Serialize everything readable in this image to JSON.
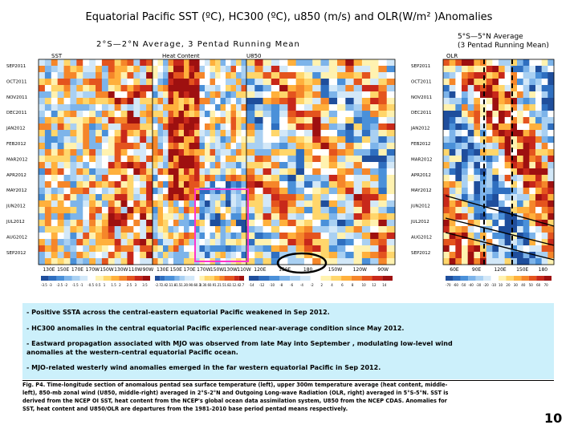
{
  "title": "Equatorial Pacific SST (ºC), HC300 (ºC), u850 (m/s) and OLR(W/m² )Anomalies",
  "subtitle_left": "2°S—2°N Average, 3 Pentad Running Mean",
  "subtitle_right": [
    "5°S—5°N Average",
    "(3 Pentad Running Mean)"
  ],
  "panel_labels": {
    "sst": "SST",
    "hc": "Heat Content",
    "u850": "U850",
    "olr": "OLR"
  },
  "notes": [
    "- Positive SSTA across the central-eastern equatorial Pacific weakened in Sep 2012.",
    "- HC300 anomalies in the central equatorial Pacific experienced near-average condition since May 2012.",
    "- Eastward propagation associated with MJO was observed from late May into September , modulating low-level wind",
    "anomalies at the western-central equatorial Pacific ocean.",
    "- MJO-related westerly wind anomalies emerged in the far western equatorial Pacific in Sep 2012."
  ],
  "caption": [
    "Fig. P4. Time-longitude section of anomalous pentad sea surface temperature (left), upper 300m temperature average (heat content, middle-",
    "left), 850-mb zonal wind (U850, middle-right) averaged in 2°S-2°N and Outgoing Long-wave Radiation (OLR, right) averaged in 5°S-5°N. SST is",
    "derived from the NCEP OI SST, heat content from the NCEP's global ocean data assimilation system, U850 from the NCEP CDAS. Anomalies for",
    "SST, heat content and U850/OLR are departures from the 1981-2010 base period pentad means respectively."
  ],
  "page_number": "10",
  "colors": {
    "note_bg": "#ccf0fb",
    "highlight_box": "#ff33cc",
    "warm": "#d7301f",
    "cool": "#2b6fbf"
  },
  "chart_data": {
    "type": "heatmap",
    "title": "Equatorial Pacific SST (ºC), HC300 (ºC), u850 (m/s) and OLR(W/m² )Anomalies",
    "time_labels_left": [
      "SEP2011",
      "OCT2011",
      "NOV2011",
      "DEC2011",
      "JAN2012",
      "FEB2012",
      "MAR2012",
      "APR2012",
      "MAY2012",
      "JUN2012",
      "JUL2012",
      "AUG2012",
      "SEP2012"
    ],
    "time_labels_right": [
      "SEP2011",
      "OCT2011",
      "NOV2011",
      "DEC2011",
      "JAN2012",
      "FEB2012",
      "MAR2012",
      "APR2012",
      "MAY2012",
      "JUN2012",
      "JUL2012",
      "AUG2012",
      "SEP2012"
    ],
    "panels": [
      {
        "name": "SST",
        "x_ticks": [
          "130E",
          "150E",
          "170E",
          "170W",
          "150W",
          "130W",
          "110W",
          "90W"
        ],
        "colorbar": [
          "-3.5",
          "-3",
          "-2.5",
          "-2",
          "-1.5",
          "-1",
          "-0.5",
          "0.5",
          "1",
          "1.5",
          "2",
          "2.5",
          "3",
          "3.5"
        ]
      },
      {
        "name": "Heat Content",
        "x_ticks": [
          "130E",
          "150E",
          "170E",
          "170W",
          "150W",
          "130W",
          "110W"
        ],
        "colorbar": [
          "-2.7",
          "-2.4",
          "-2.1",
          "-1.8",
          "-1.5",
          "-1.2",
          "-0.9",
          "-0.6",
          "-0.3",
          "0.3",
          "0.6",
          "0.9",
          "1.2",
          "1.5",
          "1.8",
          "2.1",
          "2.4",
          "2.7"
        ]
      },
      {
        "name": "U850",
        "x_ticks": [
          "120E",
          "150E",
          "180",
          "150W",
          "120W",
          "90W"
        ],
        "colorbar": [
          "-14",
          "-12",
          "-10",
          "-8",
          "-6",
          "-4",
          "-2",
          "2",
          "4",
          "6",
          "8",
          "10",
          "12",
          "14"
        ]
      },
      {
        "name": "OLR",
        "x_ticks": [
          "60E",
          "90E",
          "120E",
          "150E",
          "180"
        ],
        "colorbar": [
          "-70",
          "-60",
          "-50",
          "-40",
          "-30",
          "-20",
          "-10",
          "10",
          "20",
          "30",
          "40",
          "50",
          "60",
          "70"
        ]
      }
    ]
  }
}
